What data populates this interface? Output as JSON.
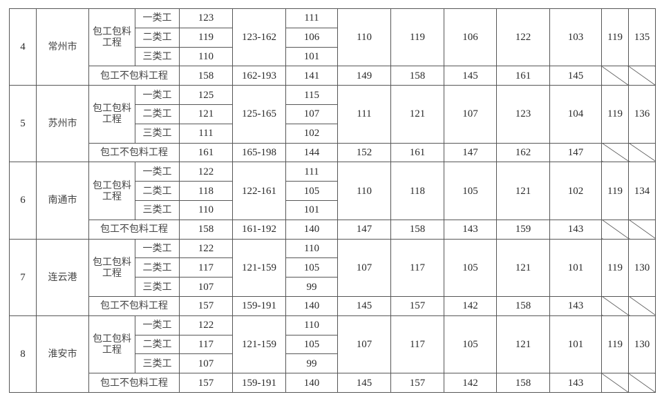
{
  "table": {
    "groups": [
      {
        "no": "4",
        "city": "常州市",
        "type_a": "包工包料工程",
        "classes": [
          "一类工",
          "二类工",
          "三类工"
        ],
        "vals_a": [
          "123",
          "119",
          "110"
        ],
        "range_a": "123-162",
        "col3_a": [
          "111",
          "106",
          "101"
        ],
        "cols_a": [
          "110",
          "119",
          "106",
          "122",
          "103",
          "119",
          "135"
        ],
        "type_b": "包工不包料工程",
        "val_b": "158",
        "range_b": "162-193",
        "col3_b": "141",
        "cols_b": [
          "149",
          "158",
          "145",
          "161",
          "145"
        ]
      },
      {
        "no": "5",
        "city": "苏州市",
        "type_a": "包工包料工程",
        "classes": [
          "一类工",
          "二类工",
          "三类工"
        ],
        "vals_a": [
          "125",
          "121",
          "111"
        ],
        "range_a": "125-165",
        "col3_a": [
          "115",
          "107",
          "102"
        ],
        "cols_a": [
          "111",
          "121",
          "107",
          "123",
          "104",
          "119",
          "136"
        ],
        "type_b": "包工不包料工程",
        "val_b": "161",
        "range_b": "165-198",
        "col3_b": "144",
        "cols_b": [
          "152",
          "161",
          "147",
          "162",
          "147"
        ]
      },
      {
        "no": "6",
        "city": "南通市",
        "type_a": "包工包料工程",
        "classes": [
          "一类工",
          "二类工",
          "三类工"
        ],
        "vals_a": [
          "122",
          "118",
          "110"
        ],
        "range_a": "122-161",
        "col3_a": [
          "111",
          "105",
          "101"
        ],
        "cols_a": [
          "110",
          "118",
          "105",
          "121",
          "102",
          "119",
          "134"
        ],
        "type_b": "包工不包料工程",
        "val_b": "158",
        "range_b": "161-192",
        "col3_b": "140",
        "cols_b": [
          "147",
          "158",
          "143",
          "159",
          "143"
        ]
      },
      {
        "no": "7",
        "city": "连云港",
        "type_a": "包工包料工程",
        "classes": [
          "一类工",
          "二类工",
          "三类工"
        ],
        "vals_a": [
          "122",
          "117",
          "107"
        ],
        "range_a": "121-159",
        "col3_a": [
          "110",
          "105",
          "99"
        ],
        "cols_a": [
          "107",
          "117",
          "105",
          "121",
          "101",
          "119",
          "130"
        ],
        "type_b": "包工不包料工程",
        "val_b": "157",
        "range_b": "159-191",
        "col3_b": "140",
        "cols_b": [
          "145",
          "157",
          "142",
          "158",
          "143"
        ]
      },
      {
        "no": "8",
        "city": "淮安市",
        "type_a": "包工包料工程",
        "classes": [
          "一类工",
          "二类工",
          "三类工"
        ],
        "vals_a": [
          "122",
          "117",
          "107"
        ],
        "range_a": "121-159",
        "col3_a": [
          "110",
          "105",
          "99"
        ],
        "cols_a": [
          "107",
          "117",
          "105",
          "121",
          "101",
          "119",
          "130"
        ],
        "type_b": "包工不包料工程",
        "val_b": "157",
        "range_b": "159-191",
        "col3_b": "140",
        "cols_b": [
          "145",
          "157",
          "142",
          "158",
          "143"
        ]
      }
    ]
  }
}
